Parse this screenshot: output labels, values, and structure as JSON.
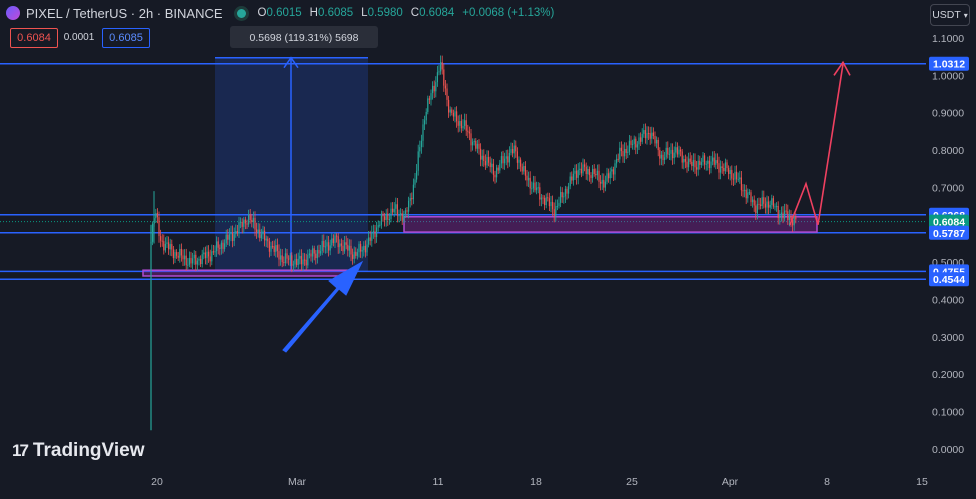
{
  "header": {
    "symbol": "PIXEL / TetherUS · 2h · BINANCE",
    "open_label": "O",
    "open": "0.6015",
    "high_label": "H",
    "high": "0.6085",
    "low_label": "L",
    "low": "0.5980",
    "close_label": "C",
    "close": "0.6084",
    "change": "+0.0068 (+1.13%)"
  },
  "quote": {
    "bid": "0.6084",
    "spread": "0.0001",
    "ask": "0.6085"
  },
  "currency_button": {
    "label": "USDT",
    "icon": "chevron-down-icon"
  },
  "measure_label": "0.5698 (119.31%) 5698",
  "logo": {
    "text": "TradingView",
    "mark": "17"
  },
  "colors": {
    "background": "#161a25",
    "up": "#26a69a",
    "down": "#ef5350",
    "line": "#2962ff",
    "zone": "#9c27b0",
    "arrow": "#ef4060"
  },
  "chart_data": {
    "type": "candlestick",
    "x_axis_labels": [
      "20",
      "Mar",
      "11",
      "18",
      "25",
      "Apr",
      "8",
      "15"
    ],
    "y_ticks": [
      "1.1000",
      "1.0000",
      "0.9000",
      "0.8000",
      "0.7000",
      "0.5000",
      "0.4000",
      "0.3000",
      "0.2000",
      "0.1000",
      "0.0000"
    ],
    "ylim": [
      0,
      1.1
    ],
    "price_labels": [
      {
        "value": "1.0312",
        "color": "#2962ff"
      },
      {
        "value": "0.6268",
        "color": "#2962ff"
      },
      {
        "value": "0.6084",
        "color": "#089981"
      },
      {
        "value": "0.5787",
        "color": "#2962ff"
      },
      {
        "value": "0.4755",
        "color": "#2962ff"
      },
      {
        "value": "0.4544",
        "color": "#2962ff"
      }
    ],
    "horizontal_lines": [
      1.0312,
      0.6268,
      0.5787,
      0.4755,
      0.4544
    ],
    "current_price": 0.6084,
    "series_approx": [
      [
        "Feb 19",
        0.6
      ],
      [
        "Feb 20",
        0.56
      ],
      [
        "Feb 23",
        0.51
      ],
      [
        "Feb 26",
        0.62
      ],
      [
        "Mar 1",
        0.5
      ],
      [
        "Mar 4",
        0.54
      ],
      [
        "Mar 8",
        0.63
      ],
      [
        "Mar 10",
        0.8
      ],
      [
        "Mar 11",
        1.0312
      ],
      [
        "Mar 13",
        0.86
      ],
      [
        "Mar 16",
        0.77
      ],
      [
        "Mar 19",
        0.65
      ],
      [
        "Mar 21",
        0.75
      ],
      [
        "Mar 23",
        0.78
      ],
      [
        "Mar 26",
        0.85
      ],
      [
        "Mar 28",
        0.77
      ],
      [
        "Apr 1",
        0.73
      ],
      [
        "Apr 3",
        0.64
      ],
      [
        "Apr 5",
        0.6084
      ]
    ]
  }
}
